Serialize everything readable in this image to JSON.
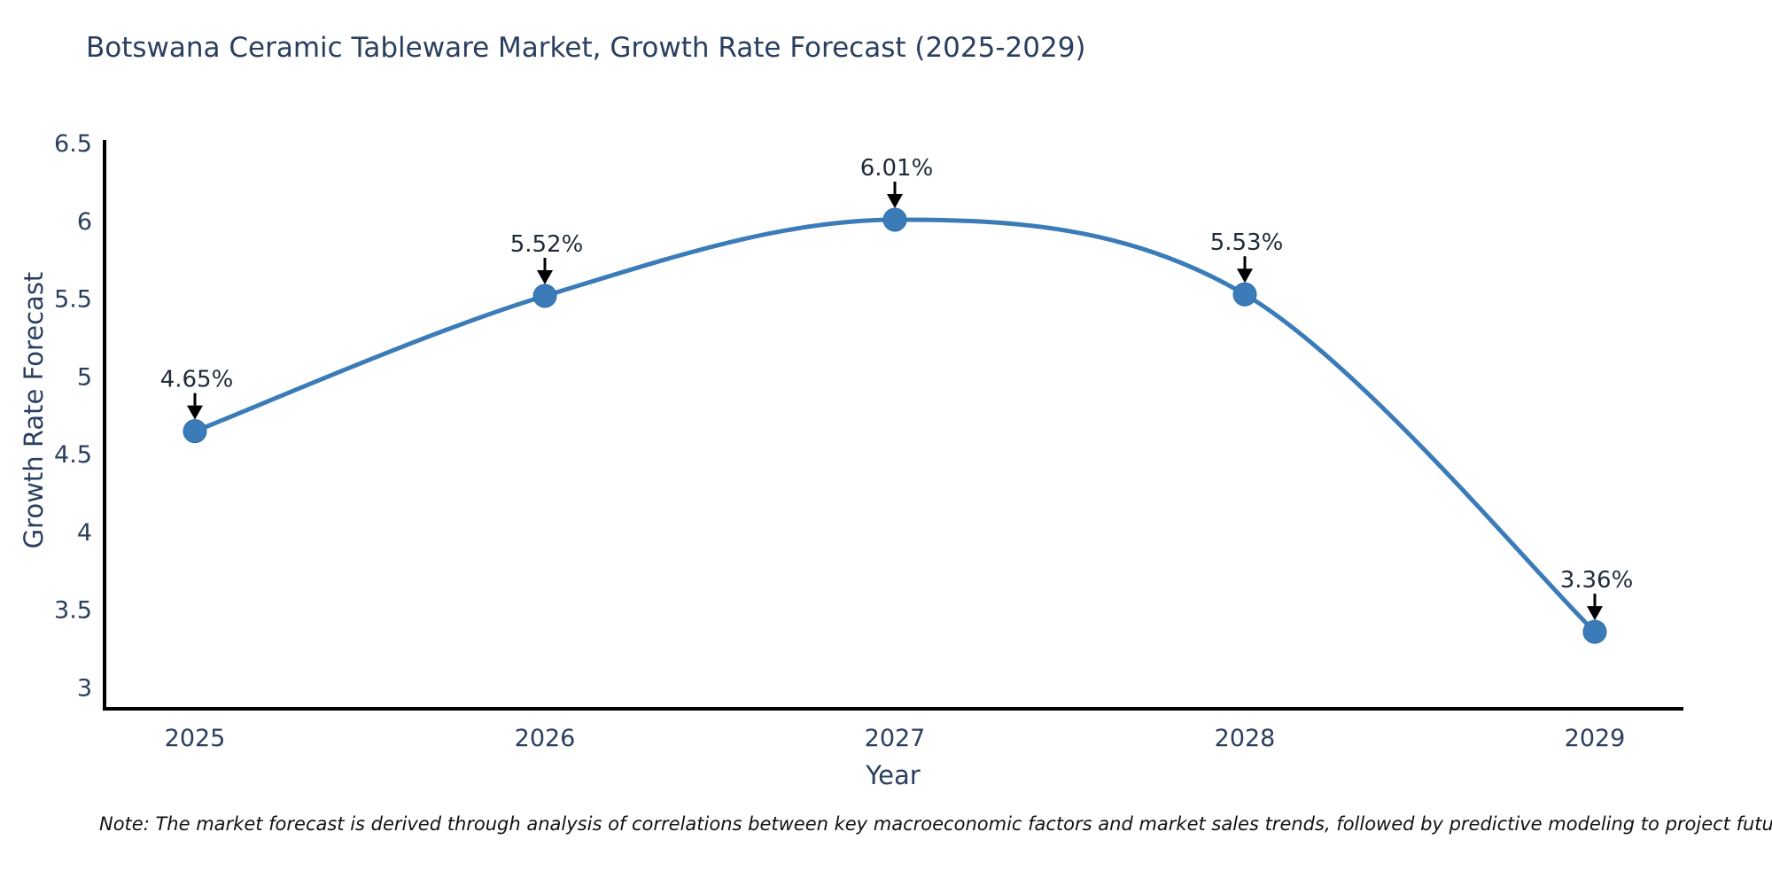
{
  "title": "Botswana Ceramic Tableware Market, Growth Rate Forecast (2025-2029)",
  "footnote": "Note: The market forecast is derived through analysis of correlations between key macroeconomic factors and market sales trends, followed by predictive modeling to project future sales",
  "chart_data": {
    "type": "line",
    "curve": "spline",
    "title": "Botswana Ceramic Tableware Market, Growth Rate Forecast (2025-2029)",
    "xlabel": "Year",
    "ylabel": "Growth Rate Forecast",
    "categories": [
      "2025",
      "2026",
      "2027",
      "2028",
      "2029"
    ],
    "values": [
      4.65,
      5.52,
      6.01,
      5.53,
      3.36
    ],
    "point_labels": [
      "4.65%",
      "5.52%",
      "6.01%",
      "5.53%",
      "3.36%"
    ],
    "yticks": [
      3,
      3.5,
      4,
      4.5,
      5,
      5.5,
      6,
      6.5
    ],
    "ylim": [
      2.86,
      6.52
    ],
    "grid": false,
    "legend": "none",
    "colors": {
      "line": "#3b7cb8",
      "marker": "#3b7cb8",
      "marker_edge": "#2e6da8",
      "axis": "#000000",
      "annotation_arrow": "#000000",
      "text": "#2a3f5f"
    }
  }
}
